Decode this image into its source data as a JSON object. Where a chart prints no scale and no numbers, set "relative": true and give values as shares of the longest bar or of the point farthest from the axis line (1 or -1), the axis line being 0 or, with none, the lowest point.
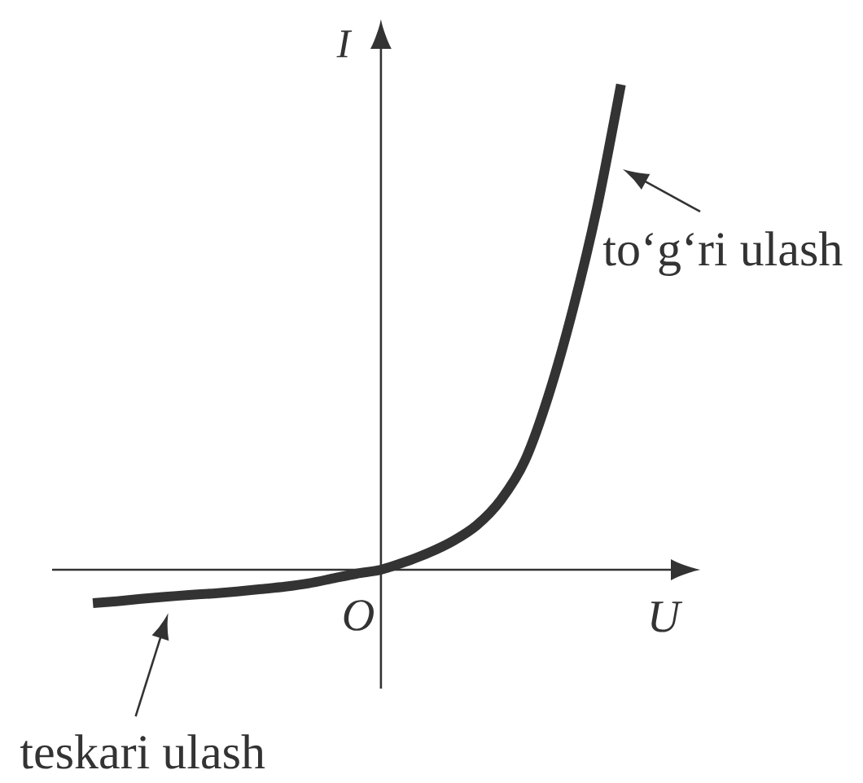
{
  "chart_data": {
    "type": "line",
    "xlabel": "U",
    "ylabel": "I",
    "annotations": [
      "O",
      "to‘g‘ri ulash",
      "teskari ulash"
    ],
    "categories": [
      null,
      null,
      null,
      null,
      null,
      null,
      null,
      null,
      null,
      null,
      null,
      null,
      null,
      null,
      null,
      null,
      null,
      null,
      null,
      null,
      null,
      null,
      null
    ],
    "values": [
      -0.069,
      -0.065,
      -0.06,
      -0.056,
      -0.052,
      -0.049,
      -0.045,
      -0.04,
      -0.035,
      -0.028,
      -0.018,
      -0.008,
      0,
      0.016,
      0.035,
      0.059,
      0.092,
      0.144,
      0.225,
      0.362,
      0.537,
      0.745,
      1
    ],
    "color": "#333333",
    "relative": true,
    "marker": "none",
    "line_style": "solid"
  }
}
